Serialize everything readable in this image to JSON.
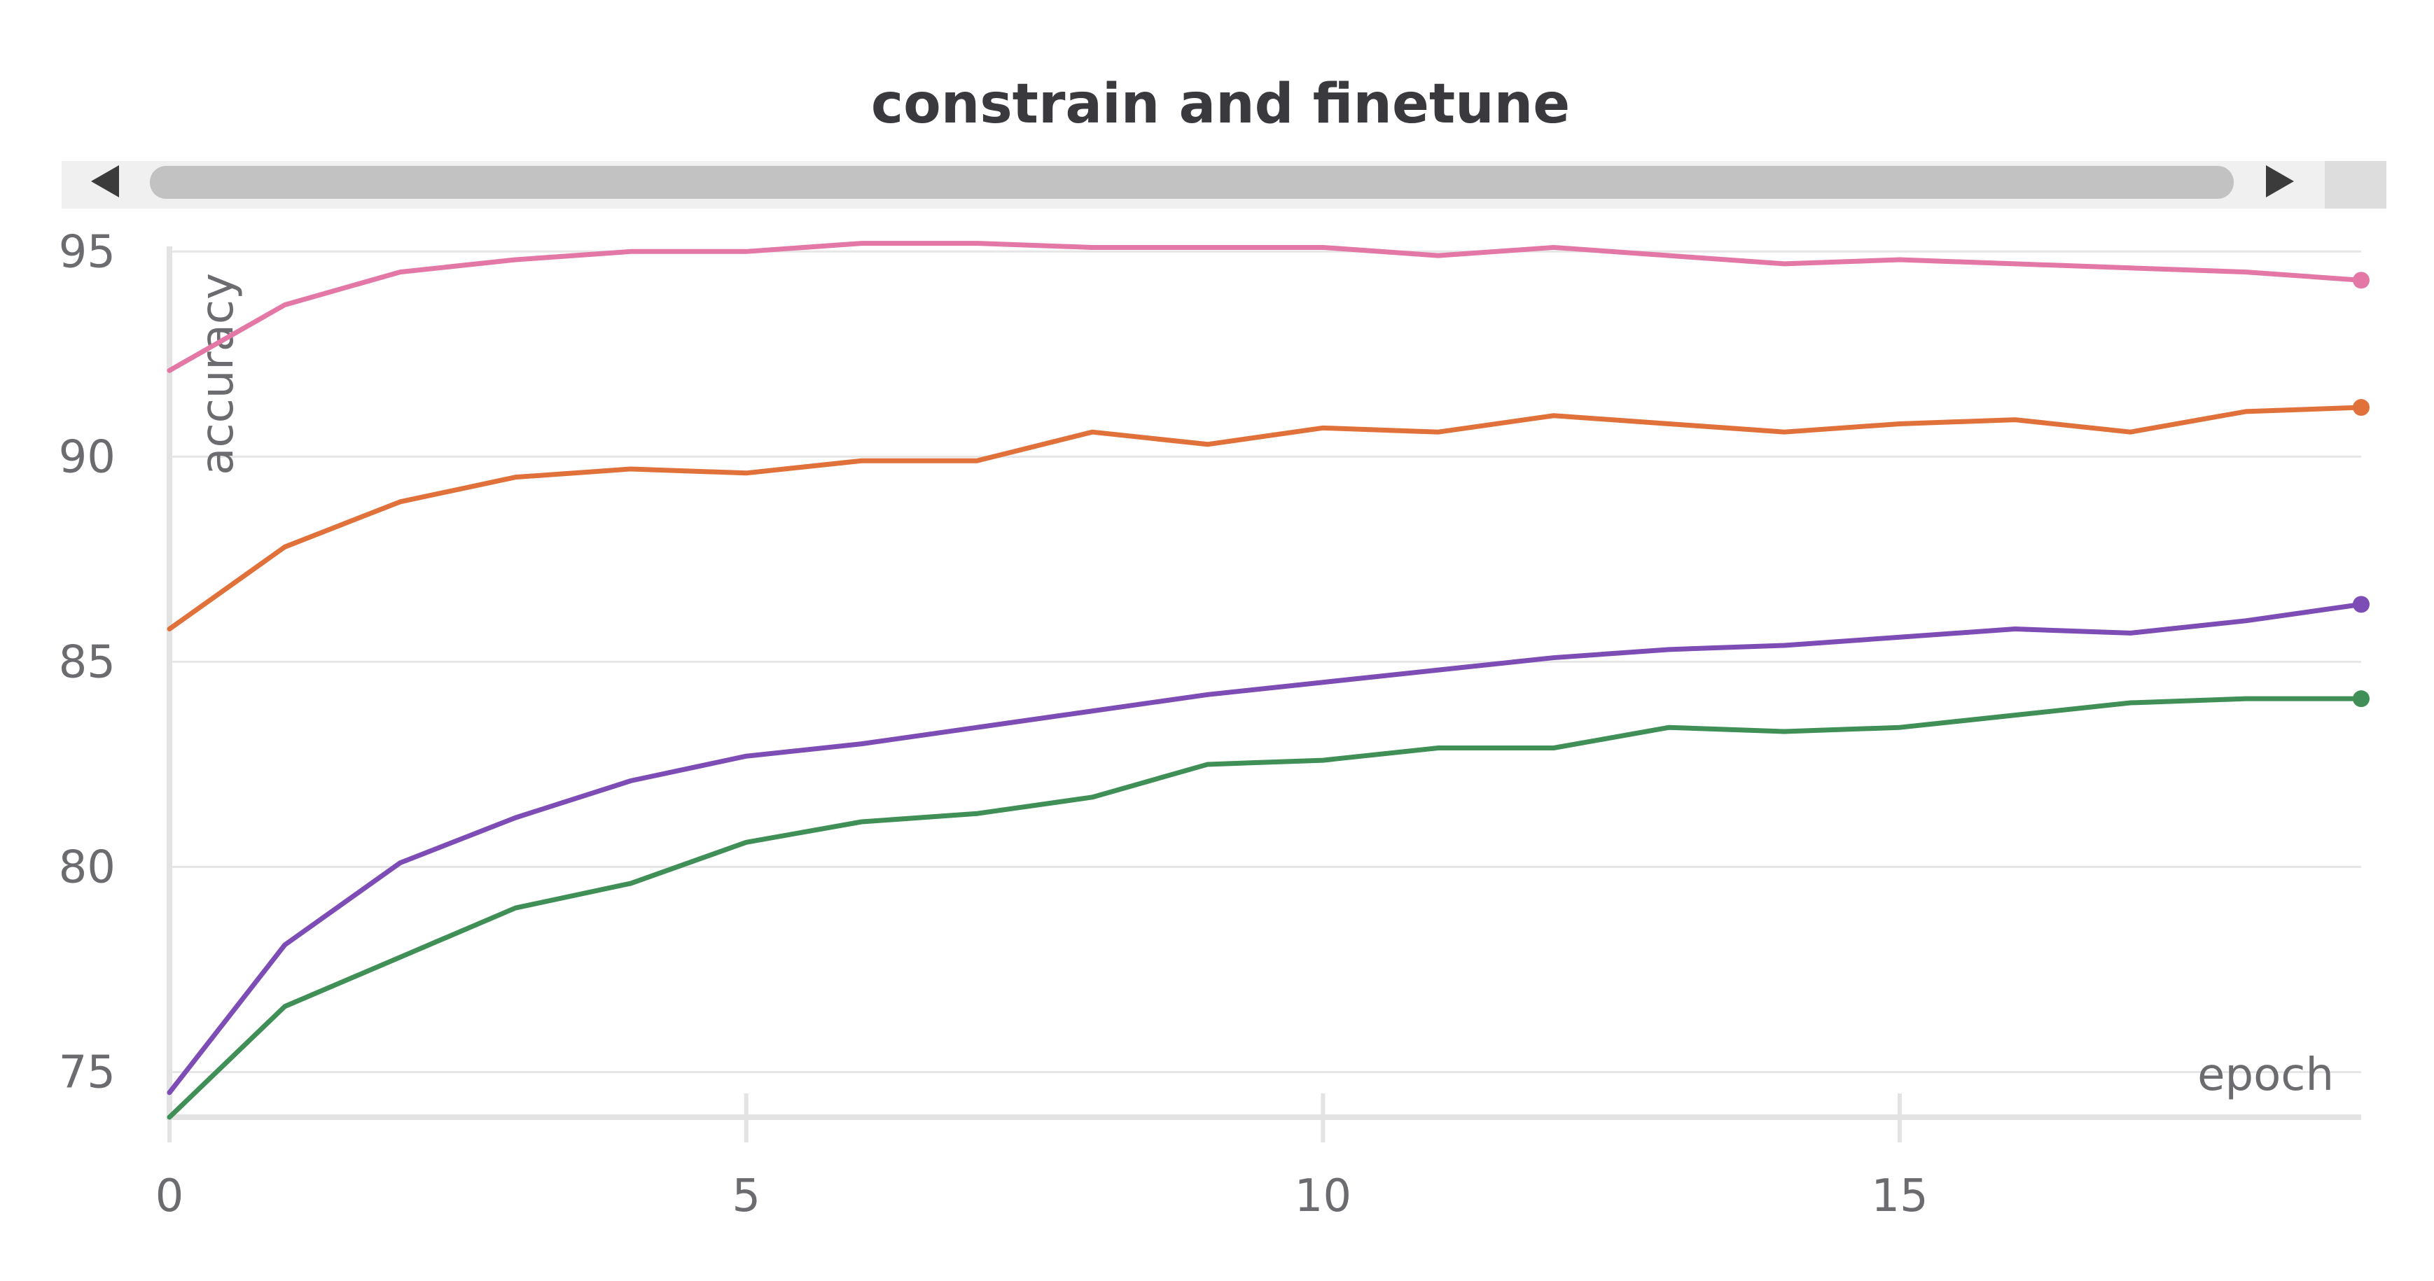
{
  "chart_data": {
    "type": "line",
    "title": "constrain and finetune",
    "xlabel": "epoch",
    "ylabel": "accuracy",
    "xlim": [
      0,
      19
    ],
    "ylim": [
      73.9,
      95.5
    ],
    "x_ticks": [
      0,
      5,
      10,
      15
    ],
    "y_ticks": [
      75,
      80,
      85,
      90,
      95
    ],
    "grid": true,
    "legend": "none",
    "x": [
      0,
      1,
      2,
      3,
      4,
      5,
      6,
      7,
      8,
      9,
      10,
      11,
      12,
      13,
      14,
      15,
      16,
      17,
      18,
      19
    ],
    "series": [
      {
        "color": "#e377a6",
        "values": [
          92.1,
          93.7,
          94.5,
          94.8,
          95.0,
          95.0,
          95.2,
          95.2,
          95.1,
          95.1,
          95.1,
          94.9,
          95.1,
          94.9,
          94.7,
          94.8,
          94.7,
          94.6,
          94.5,
          94.3
        ]
      },
      {
        "color": "#e1713a",
        "values": [
          85.8,
          87.8,
          88.9,
          89.5,
          89.7,
          89.6,
          89.9,
          89.9,
          90.6,
          90.3,
          90.7,
          90.6,
          91.0,
          90.8,
          90.6,
          90.8,
          90.9,
          90.6,
          91.1,
          91.2
        ]
      },
      {
        "color": "#7d4db5",
        "values": [
          74.5,
          78.1,
          80.1,
          81.2,
          82.1,
          82.7,
          83.0,
          83.4,
          83.8,
          84.2,
          84.5,
          84.8,
          85.1,
          85.3,
          85.4,
          85.6,
          85.8,
          85.7,
          86.0,
          86.4
        ]
      },
      {
        "color": "#3f8f57",
        "values": [
          73.9,
          76.6,
          77.8,
          79.0,
          79.6,
          80.6,
          81.1,
          81.3,
          81.7,
          82.5,
          82.6,
          82.9,
          82.9,
          83.4,
          83.3,
          83.4,
          83.7,
          84.0,
          84.1,
          84.1
        ]
      }
    ]
  },
  "scrollbar": {
    "left_arrow_icon": "triangle-left",
    "right_arrow_icon": "triangle-right",
    "thumb_position": 0.0
  }
}
